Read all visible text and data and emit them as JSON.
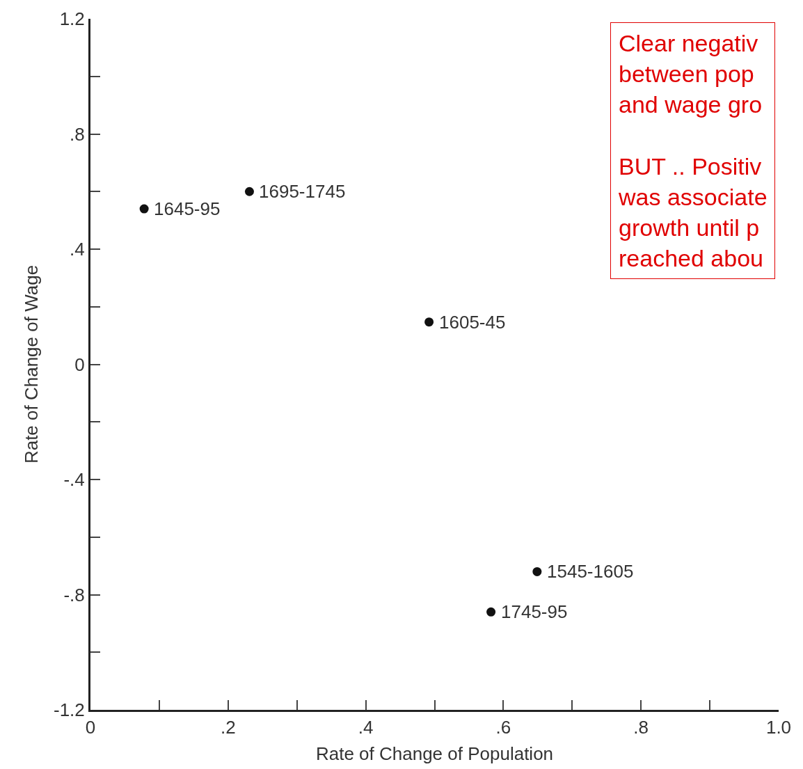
{
  "chart_data": {
    "type": "scatter",
    "xlabel": "Rate of Change of Population",
    "ylabel": "Rate of Change of Wage",
    "x": [
      0.078,
      0.231,
      0.492,
      0.649,
      0.582
    ],
    "values": [
      0.54,
      0.6,
      0.147,
      -0.72,
      -0.86
    ],
    "color": "#111111",
    "marker": "circle",
    "legend": false,
    "xlim": [
      0,
      1.0
    ],
    "ylim": [
      -1.2,
      1.2
    ],
    "xticks": [
      {
        "value": 0,
        "label": "0"
      },
      {
        "value": 0.1,
        "label": null
      },
      {
        "value": 0.2,
        "label": ".2"
      },
      {
        "value": 0.3,
        "label": null
      },
      {
        "value": 0.4,
        "label": ".4"
      },
      {
        "value": 0.5,
        "label": null
      },
      {
        "value": 0.6,
        "label": ".6"
      },
      {
        "value": 0.7,
        "label": null
      },
      {
        "value": 0.8,
        "label": ".8"
      },
      {
        "value": 0.9,
        "label": null
      },
      {
        "value": 1.0,
        "label": "1.0"
      }
    ],
    "yticks": [
      {
        "value": -1.2,
        "label": "-1.2"
      },
      {
        "value": -1.0,
        "label": null
      },
      {
        "value": -0.8,
        "label": "-.8"
      },
      {
        "value": -0.6,
        "label": null
      },
      {
        "value": -0.4,
        "label": "-.4"
      },
      {
        "value": -0.2,
        "label": null
      },
      {
        "value": 0,
        "label": "0"
      },
      {
        "value": 0.2,
        "label": null
      },
      {
        "value": 0.4,
        "label": ".4"
      },
      {
        "value": 0.6,
        "label": null
      },
      {
        "value": 0.8,
        "label": ".8"
      },
      {
        "value": 1.0,
        "label": null
      },
      {
        "value": 1.2,
        "label": "1.2"
      }
    ],
    "annotations": [
      {
        "text": "1645-95",
        "x": 0.078,
        "y": 0.54
      },
      {
        "text": "1695-1745",
        "x": 0.231,
        "y": 0.6
      },
      {
        "text": "1605-45",
        "x": 0.492,
        "y": 0.147
      },
      {
        "text": "1545-1605",
        "x": 0.649,
        "y": -0.72
      },
      {
        "text": "1745-95",
        "x": 0.582,
        "y": -0.86
      },
      "Clear negativ\nbetween pop\nand wage gro\n\nBUT .. Positiv\nwas associate\ngrowth until p\nreached abou"
    ]
  }
}
